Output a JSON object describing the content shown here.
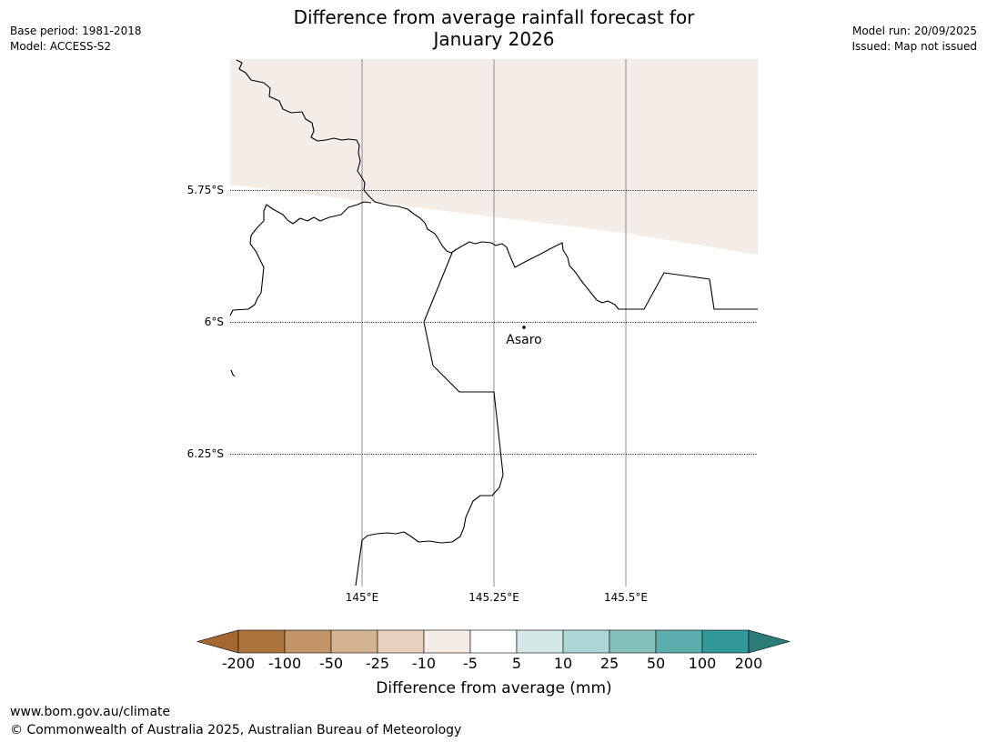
{
  "header": {
    "title_line1": "Difference from average rainfall forecast for",
    "title_line2": "January 2026",
    "base_period": "Base period: 1981-2018",
    "model": "Model: ACCESS-S2",
    "model_run": "Model run: 20/09/2025",
    "issued": "Issued: Map not issued"
  },
  "map": {
    "lat_labels": [
      "5.75°S",
      "6°S",
      "6.25°S"
    ],
    "lon_labels": [
      "145°E",
      "145.25°E",
      "145.5°E"
    ],
    "place": {
      "name": "Asaro"
    },
    "fill_colors": {
      "low_negative": "#f4ede7",
      "near_zero": "#ffffff"
    }
  },
  "legend": {
    "label": "Difference from average (mm)",
    "ticks": [
      "-200",
      "-100",
      "-50",
      "-25",
      "-10",
      "-5",
      "5",
      "10",
      "25",
      "50",
      "100",
      "200"
    ],
    "colors": [
      "#a56731",
      "#ad733c",
      "#c39467",
      "#d4b393",
      "#e6d1bf",
      "#f4ede7",
      "#ffffff",
      "#d5e8e8",
      "#add7d6",
      "#85c0bd",
      "#5caead",
      "#339998",
      "#2b7b78"
    ]
  },
  "footer": {
    "url": "www.bom.gov.au/climate",
    "copyright": "© Commonwealth of Australia 2025, Australian Bureau of Meteorology"
  }
}
